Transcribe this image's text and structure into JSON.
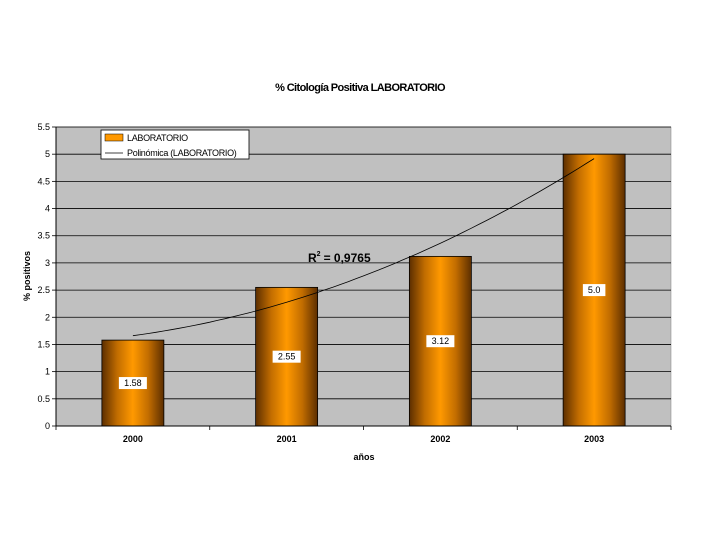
{
  "chart_data": {
    "type": "bar",
    "title": "% Citología Positiva LABORATORIO",
    "xlabel": "años",
    "ylabel": "% positivos",
    "categories": [
      "2000",
      "2001",
      "2002",
      "2003"
    ],
    "series": [
      {
        "name": "LABORATORIO",
        "values": [
          1.58,
          2.55,
          3.12,
          5.0
        ]
      }
    ],
    "data_labels": [
      "1.58",
      "2.55",
      "3.12",
      "5.0"
    ],
    "trendline": {
      "name": "Polinómica (LABORATORIO)",
      "type": "polynomial",
      "r2_label": "R",
      "r2_superscript": "2",
      "r2_value": "= 0,9765",
      "values": [
        1.66,
        2.28,
        3.36,
        4.92
      ]
    },
    "ylim": [
      0,
      5.5
    ],
    "yticks": [
      "0",
      "0.5",
      "1",
      "1.5",
      "2",
      "2.5",
      "3",
      "3.5",
      "4",
      "4.5",
      "5",
      "5.5"
    ],
    "grid": true,
    "legend_position": "top-left",
    "colors": {
      "plot_background": "#c0c0c0",
      "bar_light": "#ff9900",
      "bar_dark": "#5c2e00",
      "gridline": "#000000"
    }
  }
}
